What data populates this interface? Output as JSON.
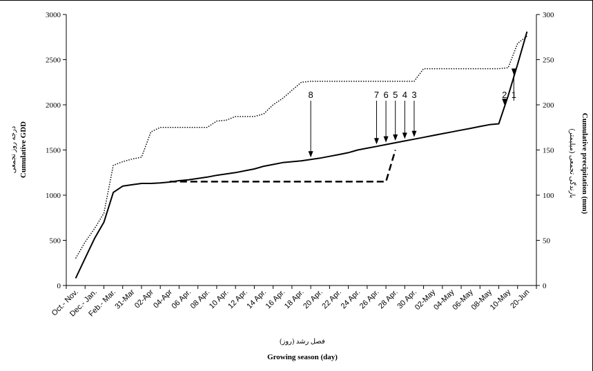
{
  "chart_data": {
    "type": "line",
    "categories": [
      "Oct.- Nov.",
      "Dec.- Jan.",
      "Feb.- Mar.",
      "31-Mar",
      "02-Apr",
      "04-Apr",
      "06 Apr.",
      "08 Apr.",
      "10 Apr.",
      "12 Apr.",
      "14 Apr.",
      "16 Apr.",
      "18 Apr.",
      "20 Apr.",
      "22 Apr.",
      "24 Apr.",
      "26 Apr.",
      "28 Apr.",
      "30 Apr.",
      "02-May",
      "04-May",
      "06-May",
      "08-May",
      "10-May",
      "20-Jun"
    ],
    "x": [
      0,
      0.5,
      1,
      1.5,
      2,
      2.5,
      3,
      3.5,
      4,
      4.5,
      5,
      5.5,
      6,
      6.5,
      7,
      7.5,
      8,
      8.5,
      9,
      9.5,
      10,
      10.5,
      11,
      11.5,
      12,
      12.5,
      13,
      13.5,
      14,
      14.5,
      15,
      15.5,
      16,
      16.5,
      17,
      17.5,
      18,
      18.5,
      19,
      19.5,
      20,
      20.5,
      21,
      21.5,
      22,
      22.5,
      23,
      23.5,
      24
    ],
    "series": [
      {
        "axis": "left",
        "style": "solid",
        "color": "#000000",
        "values": [
          80,
          300,
          520,
          700,
          1030,
          1100,
          1115,
          1130,
          1130,
          1135,
          1145,
          1160,
          1170,
          1185,
          1200,
          1220,
          1235,
          1250,
          1270,
          1290,
          1320,
          1340,
          1360,
          1370,
          1380,
          1395,
          1410,
          1430,
          1450,
          1470,
          1500,
          1520,
          1540,
          1560,
          1580,
          1600,
          1620,
          1640,
          1660,
          1680,
          1700,
          1720,
          1740,
          1760,
          1780,
          1790,
          2100,
          2450,
          2810
        ]
      },
      {
        "axis": "right",
        "style": "dotted",
        "color": "#000000",
        "values": [
          30,
          48,
          63,
          80,
          133,
          137,
          140,
          142,
          170,
          175,
          175,
          175,
          175,
          175,
          175,
          182,
          183,
          187,
          187,
          187,
          190,
          200,
          207,
          216,
          225,
          226,
          226,
          226,
          226,
          226,
          226,
          226,
          226,
          226,
          226,
          226,
          226,
          240,
          240,
          240,
          240,
          240,
          240,
          240,
          240,
          240,
          241,
          268,
          276
        ]
      },
      {
        "axis": "left",
        "style": "dashed",
        "color": "#000000",
        "x": [
          5,
          16.5,
          17
        ],
        "values": [
          1150,
          1150,
          1500
        ]
      }
    ],
    "markers": [
      {
        "label": "8",
        "x": 12.5
      },
      {
        "label": "7",
        "x": 16.0
      },
      {
        "label": "6",
        "x": 16.5
      },
      {
        "label": "5",
        "x": 17.0
      },
      {
        "label": "4",
        "x": 17.5
      },
      {
        "label": "3",
        "x": 18.0
      },
      {
        "label": "2",
        "x": 22.8
      },
      {
        "label": "1",
        "x": 23.3
      }
    ],
    "xlabel": "Growing  season (day)",
    "xlabel_fa": "فصل رشد (روز)",
    "ylabel": "Cumulative  GDD",
    "ylabel_fa": "درجه روز تجمعی",
    "y2label": "Cumulative  precipitation  (mm)",
    "y2label_fa": "بارندگی تجمعی (میلیمتر)",
    "ylim": [
      0,
      3000
    ],
    "yticks": [
      0,
      500,
      1000,
      1500,
      2000,
      2500,
      3000
    ],
    "y2lim": [
      0,
      300
    ],
    "y2ticks": [
      0,
      50,
      100,
      150,
      200,
      250,
      300
    ],
    "grid": false,
    "legend": "none"
  }
}
